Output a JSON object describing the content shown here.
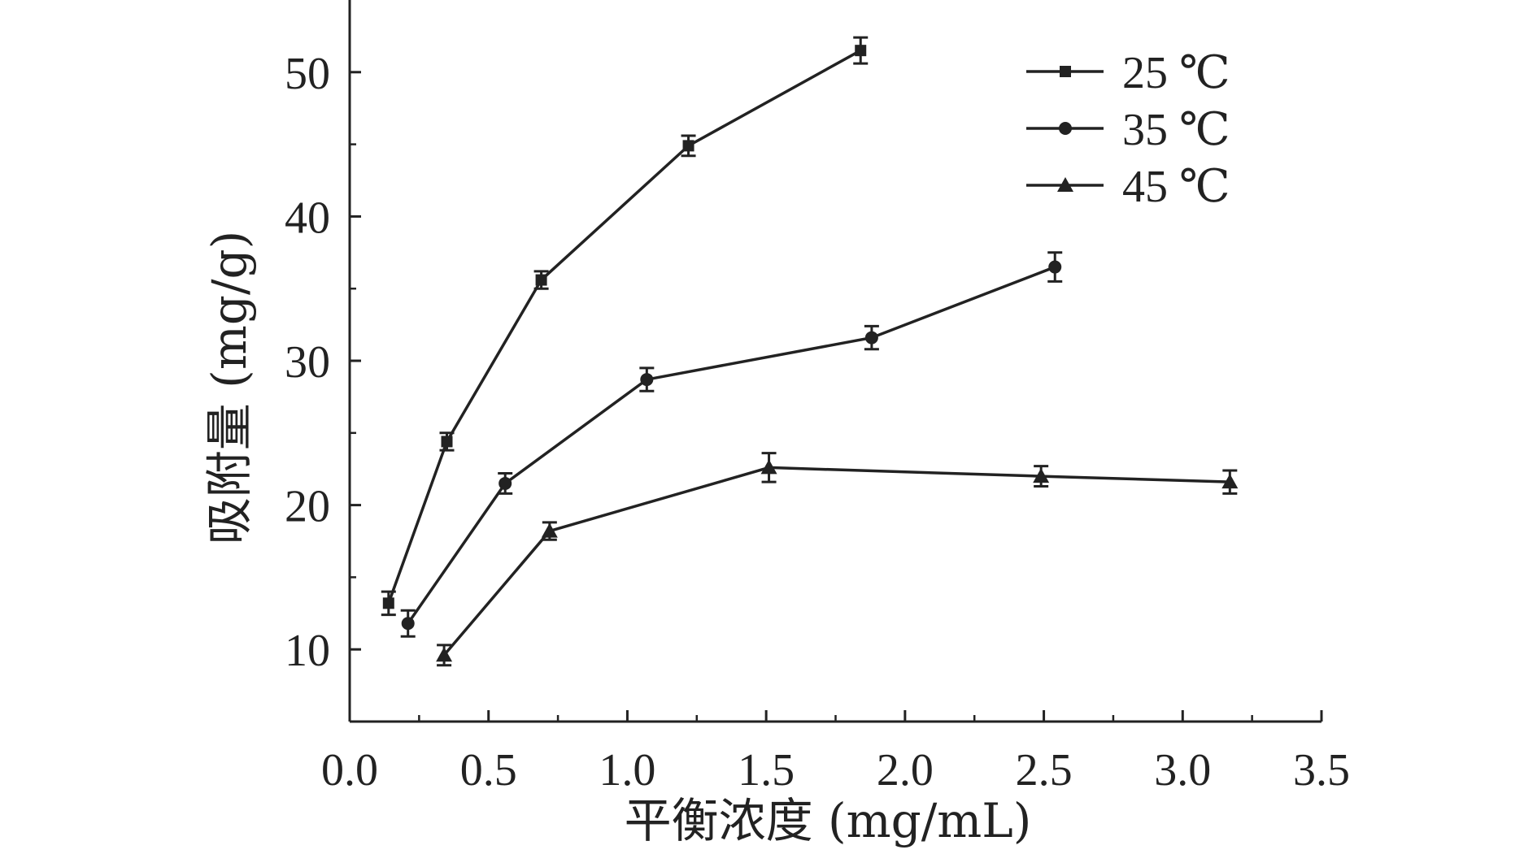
{
  "chart_data": {
    "type": "line",
    "title": "",
    "xlabel": "平衡浓度 (mg/mL)",
    "ylabel": "吸附量 (mg/g)",
    "xlim": [
      0,
      3.5
    ],
    "ylim": [
      5,
      55
    ],
    "xticks": [
      "0.0",
      "0.5",
      "1.0",
      "1.5",
      "2.0",
      "2.5",
      "3.0",
      "3.5"
    ],
    "yticks": [
      "10",
      "20",
      "30",
      "40",
      "50"
    ],
    "grid": false,
    "legend_position": "top-right",
    "series": [
      {
        "name": "25 ℃",
        "marker": "square",
        "x": [
          0.14,
          0.35,
          0.69,
          1.22,
          1.84
        ],
        "y": [
          13.2,
          24.4,
          35.6,
          44.9,
          51.5
        ],
        "err": [
          0.8,
          0.6,
          0.6,
          0.7,
          0.9
        ]
      },
      {
        "name": "35 ℃",
        "marker": "circle",
        "x": [
          0.21,
          0.56,
          1.07,
          1.88,
          2.54
        ],
        "y": [
          11.8,
          21.5,
          28.7,
          31.6,
          36.5
        ],
        "err": [
          0.9,
          0.7,
          0.8,
          0.8,
          1.0
        ]
      },
      {
        "name": "45 ℃",
        "marker": "triangle",
        "x": [
          0.34,
          0.72,
          1.51,
          2.49,
          3.17
        ],
        "y": [
          9.6,
          18.2,
          22.6,
          22.0,
          21.6
        ],
        "err": [
          0.7,
          0.6,
          1.0,
          0.7,
          0.8
        ]
      }
    ]
  }
}
